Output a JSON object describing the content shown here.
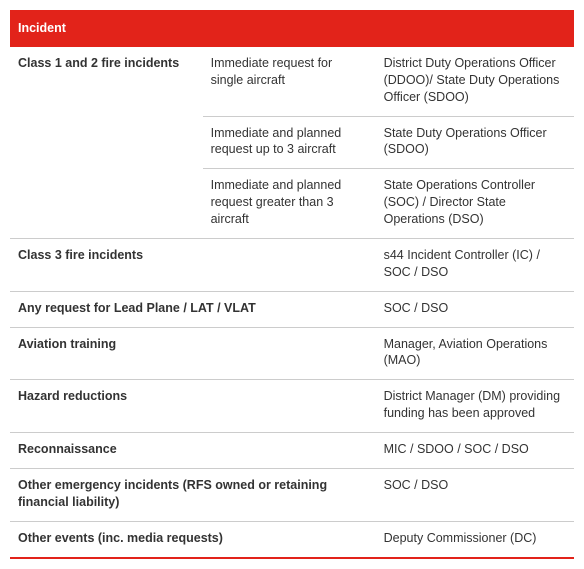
{
  "header": "Incident",
  "rows": [
    {
      "category": "Class 1 and 2 fire incidents",
      "subrows": [
        {
          "desc": "Immediate request for single aircraft",
          "auth": "District Duty Operations Officer (DDOO)/ State Duty Operations Officer (SDOO)"
        },
        {
          "desc": "Immediate and planned request up to 3 aircraft",
          "auth": "State Duty Operations Officer (SDOO)"
        },
        {
          "desc": "Immediate and planned request greater than 3 aircraft",
          "auth": "State Operations Controller (SOC) / Director State Operations (DSO)"
        }
      ]
    },
    {
      "category": "Class 3 fire incidents",
      "desc": "",
      "auth": "s44 Incident Controller (IC) / SOC / DSO"
    },
    {
      "category": "Any request for Lead Plane / LAT / VLAT",
      "desc": "",
      "auth": "SOC / DSO"
    },
    {
      "category": "Aviation training",
      "desc": "",
      "auth": "Manager, Aviation Operations (MAO)"
    },
    {
      "category": "Hazard reductions",
      "desc": "",
      "auth": "District Manager (DM) providing funding has been approved"
    },
    {
      "category": "Reconnaissance",
      "desc": "",
      "auth": "MIC / SDOO / SOC / DSO"
    },
    {
      "category": "Other emergency incidents (RFS owned or retaining financial liability)",
      "desc": "",
      "auth": "SOC / DSO"
    },
    {
      "category": "Other events (inc. media requests)",
      "desc": "",
      "auth": "Deputy Commissioner (DC)"
    }
  ]
}
